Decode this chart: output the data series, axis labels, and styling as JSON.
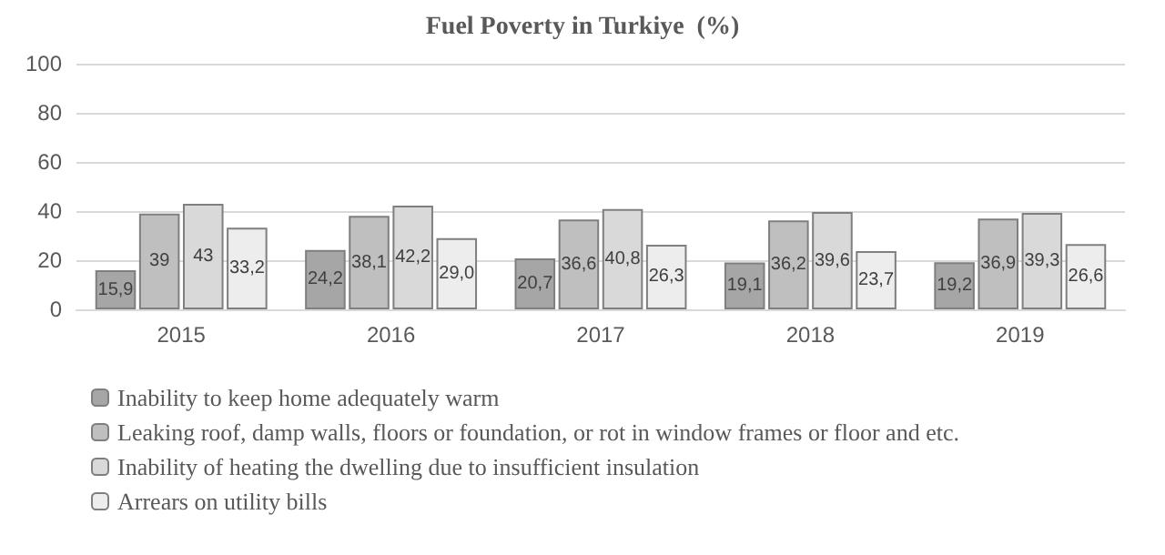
{
  "chart_data": {
    "type": "bar",
    "title": "Fuel Poverty in Turkiye  (%)",
    "categories": [
      "2015",
      "2016",
      "2017",
      "2018",
      "2019"
    ],
    "series": [
      {
        "name": "Inability to keep home adequately warm",
        "color": "#a6a6a6",
        "values": [
          15.9,
          24.2,
          20.7,
          19.1,
          19.2
        ],
        "value_labels": [
          "15,9",
          "24,2",
          "20,7",
          "19,1",
          "19,2"
        ]
      },
      {
        "name": "Leaking roof, damp walls, floors or foundation, or rot in window frames or floor and etc.",
        "color": "#bfbfbf",
        "values": [
          39,
          38.1,
          36.6,
          36.2,
          36.9
        ],
        "value_labels": [
          "39",
          "38,1",
          "36,6",
          "36,2",
          "36,9"
        ]
      },
      {
        "name": "Inability of heating the dwelling due to insufficient insulation",
        "color": "#d9d9d9",
        "values": [
          43,
          42.2,
          40.8,
          39.6,
          39.3
        ],
        "value_labels": [
          "43",
          "42,2",
          "40,8",
          "39,6",
          "39,3"
        ]
      },
      {
        "name": "Arrears on utility bills",
        "color": "#ededed",
        "values": [
          33.2,
          29.0,
          26.3,
          23.7,
          26.6
        ],
        "value_labels": [
          "33,2",
          "29,0",
          "26,3",
          "23,7",
          "26,6"
        ]
      }
    ],
    "ylim": [
      0,
      100
    ],
    "yticks": [
      0,
      20,
      40,
      60,
      80,
      100
    ],
    "grid": "y",
    "legend": "bottom"
  }
}
